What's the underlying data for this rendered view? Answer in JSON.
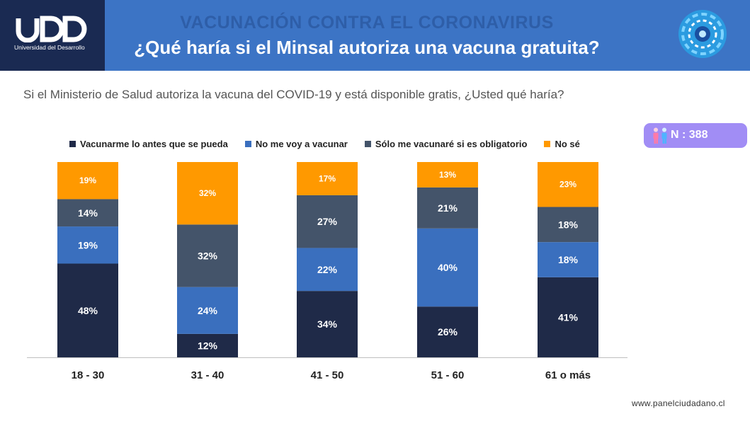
{
  "header": {
    "logo_text": "UDD",
    "logo_subtitle": "Universidad del Desarrollo",
    "kicker": "VACUNACIÓN CONTRA EL CORONAVIRUS",
    "title": "¿Qué haría si el Minsal autoriza una vacuna gratuita?"
  },
  "question": "Si el Ministerio de Salud autoriza la vacuna del COVID-19 y está disponible gratis, ¿Usted qué haría?",
  "badge": {
    "text": "N : 388",
    "icon": "people-icon"
  },
  "footer": "www.panelciudadano.cl",
  "colors": {
    "header_bg": "#3c74c5",
    "logo_bg": "#1a2a52",
    "badge_bg": "#a18df5"
  },
  "chart_data": {
    "type": "bar",
    "stacked": true,
    "categories": [
      "18 - 30",
      "31 - 40",
      "41 - 50",
      "51 - 60",
      "61 o más"
    ],
    "series": [
      {
        "name": "Vacunarme lo antes que se pueda",
        "color": "#1f2a48",
        "values": [
          48,
          12,
          34,
          26,
          41
        ]
      },
      {
        "name": "No me voy a vacunar",
        "color": "#3a6fbe",
        "values": [
          19,
          24,
          22,
          40,
          18
        ]
      },
      {
        "name": "Sólo me vacunaré si es obligatorio",
        "color": "#44546a",
        "values": [
          14,
          32,
          27,
          21,
          18
        ]
      },
      {
        "name": "No sé",
        "color": "#ff9900",
        "values": [
          19,
          32,
          17,
          13,
          23
        ]
      }
    ],
    "value_suffix": "%",
    "legend_position": "top",
    "grid": false
  }
}
